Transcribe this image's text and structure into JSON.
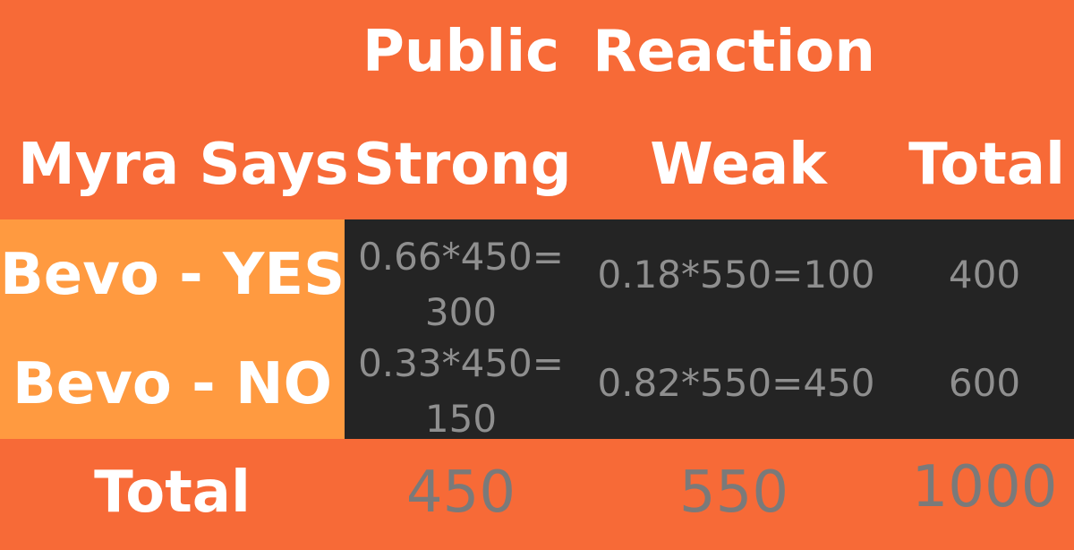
{
  "header": {
    "public_label": "Public",
    "reaction_label": "Reaction"
  },
  "columns": {
    "myra_says": "Myra Says",
    "strong": "Strong",
    "weak": "Weak",
    "total": "Total"
  },
  "rows": [
    {
      "label": "Bevo - YES",
      "strong": "0.66*450= 300",
      "weak": "0.18*550=100",
      "total": "400"
    },
    {
      "label": "Bevo - NO",
      "strong": "0.33*450= 150",
      "weak": "0.82*550=450",
      "total": "600"
    }
  ],
  "totals": {
    "label": "Total",
    "strong": "450",
    "weak": "550",
    "grand": "1000"
  },
  "colors": {
    "orange_bg": "#f76a37",
    "label_bg": "#ff9a40",
    "dark_bg": "#242424",
    "white_text": "#ffffff",
    "gray_text": "#8f8f8f"
  }
}
